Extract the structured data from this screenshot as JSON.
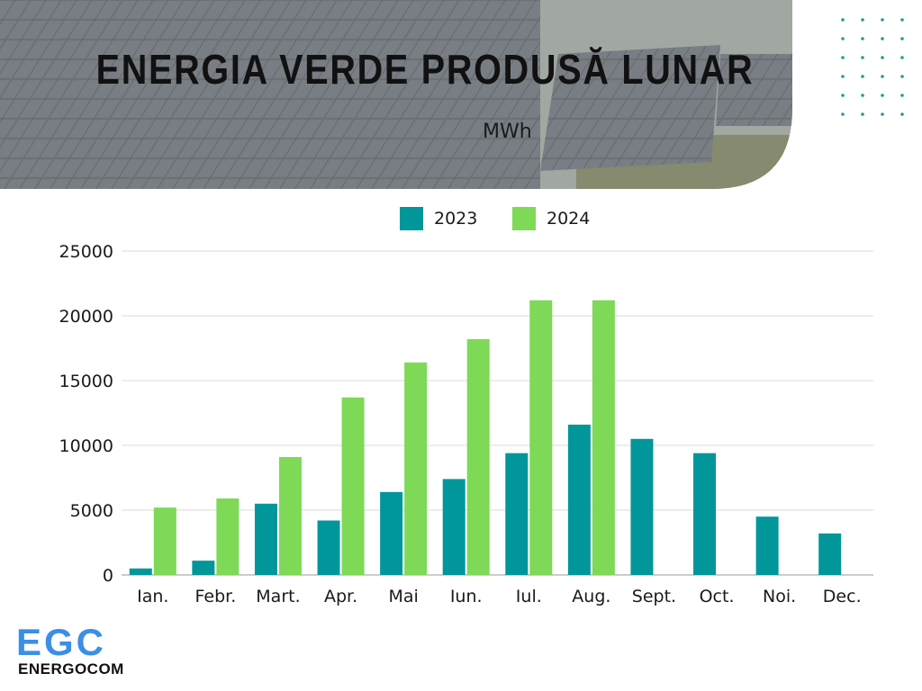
{
  "title": "ENERGIA VERDE PRODUSĂ LUNAR",
  "unit": "MWh",
  "colors": {
    "2023": "#00969a",
    "2024": "#7ed957",
    "grid": "#d9d9d9"
  },
  "logo": {
    "mark": "EGC",
    "name": "ENERGOCOM"
  },
  "chart_data": {
    "type": "bar",
    "title": "ENERGIA VERDE PRODUSĂ LUNAR",
    "ylabel": "MWh",
    "xlabel": "",
    "ylim": [
      0,
      25000
    ],
    "yticks": [
      0,
      5000,
      10000,
      15000,
      20000,
      25000
    ],
    "grid": true,
    "legend": "top-center",
    "categories": [
      "Ian.",
      "Febr.",
      "Mart.",
      "Apr.",
      "Mai",
      "Iun.",
      "Iul.",
      "Aug.",
      "Sept.",
      "Oct.",
      "Noi.",
      "Dec."
    ],
    "series": [
      {
        "name": "2023",
        "color": "#00969a",
        "values": [
          500,
          1100,
          5500,
          4200,
          6400,
          7400,
          9400,
          11600,
          10500,
          9400,
          4500,
          3200
        ]
      },
      {
        "name": "2024",
        "color": "#7ed957",
        "values": [
          5200,
          5900,
          9100,
          13700,
          16400,
          18200,
          21200,
          21200,
          null,
          null,
          null,
          null
        ]
      }
    ]
  }
}
